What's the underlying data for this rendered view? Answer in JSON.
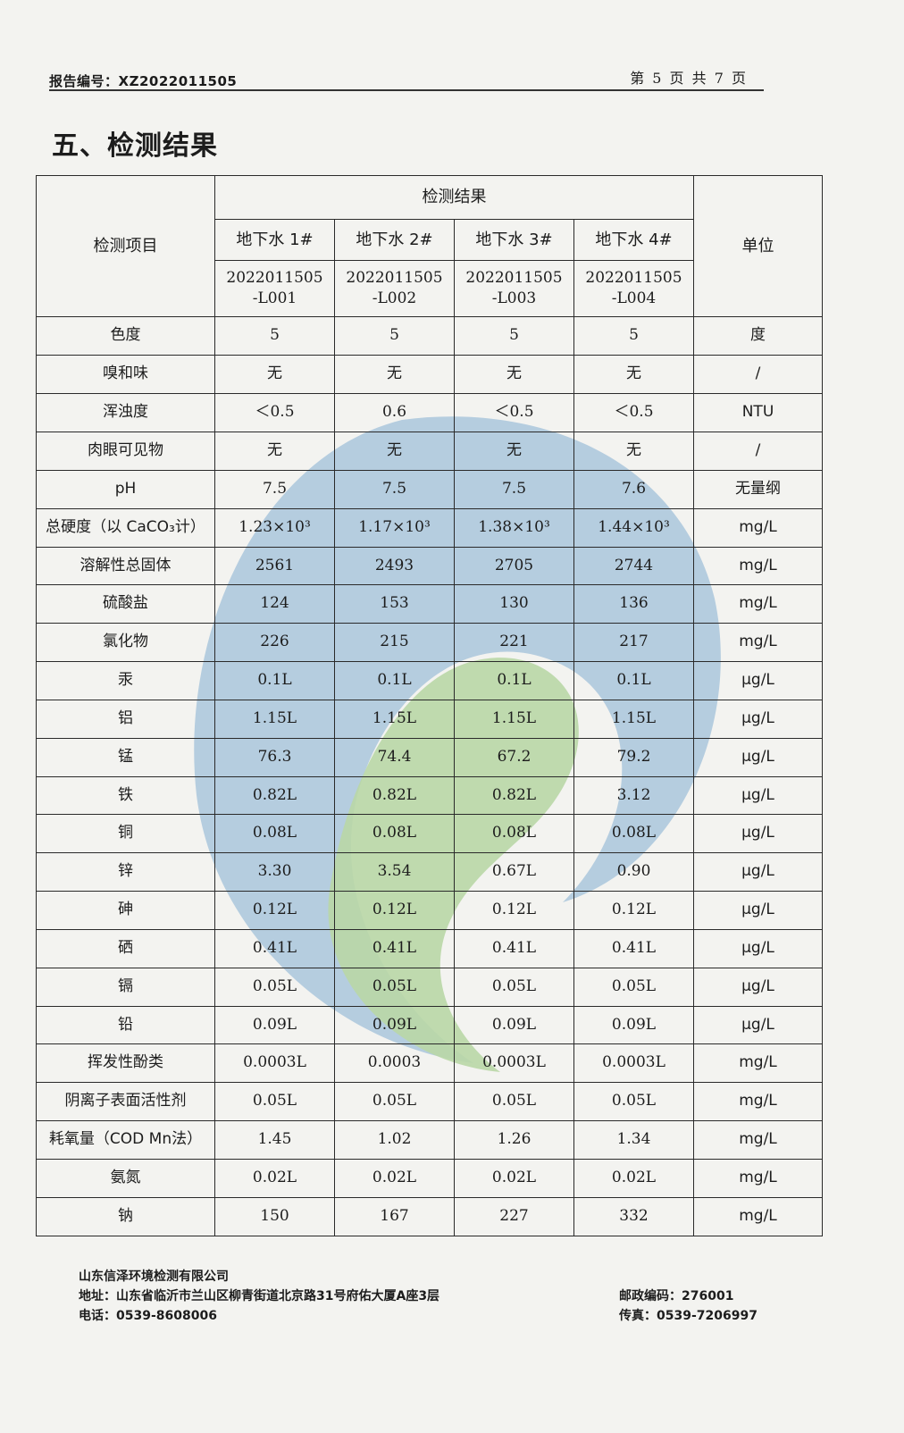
{
  "header": {
    "report_no": "报告编号：XZ2022011505",
    "page": "第 5 页 共 7 页"
  },
  "section_title": "五、检测结果",
  "table": {
    "item_header": "检测项目",
    "result_header": "检测结果",
    "unit_header": "单位",
    "samples": [
      {
        "name": "地下水 1#",
        "code": "2022011505-L001"
      },
      {
        "name": "地下水 2#",
        "code": "2022011505-L002"
      },
      {
        "name": "地下水 3#",
        "code": "2022011505-L003"
      },
      {
        "name": "地下水 4#",
        "code": "2022011505-L004"
      }
    ],
    "rows": [
      {
        "item": "色度",
        "v1": "5",
        "v2": "5",
        "v3": "5",
        "v4": "5",
        "unit": "度"
      },
      {
        "item": "嗅和味",
        "v1": "无",
        "v2": "无",
        "v3": "无",
        "v4": "无",
        "unit": "/"
      },
      {
        "item": "浑浊度",
        "v1": "＜0.5",
        "v2": "0.6",
        "v3": "＜0.5",
        "v4": "＜0.5",
        "unit": "NTU"
      },
      {
        "item": "肉眼可见物",
        "v1": "无",
        "v2": "无",
        "v3": "无",
        "v4": "无",
        "unit": "/"
      },
      {
        "item": "pH",
        "v1": "7.5",
        "v2": "7.5",
        "v3": "7.5",
        "v4": "7.6",
        "unit": "无量纲"
      },
      {
        "item": "总硬度（以 CaCO₃计）",
        "v1": "1.23×10³",
        "v2": "1.17×10³",
        "v3": "1.38×10³",
        "v4": "1.44×10³",
        "unit": "mg/L"
      },
      {
        "item": "溶解性总固体",
        "v1": "2561",
        "v2": "2493",
        "v3": "2705",
        "v4": "2744",
        "unit": "mg/L"
      },
      {
        "item": "硫酸盐",
        "v1": "124",
        "v2": "153",
        "v3": "130",
        "v4": "136",
        "unit": "mg/L"
      },
      {
        "item": "氯化物",
        "v1": "226",
        "v2": "215",
        "v3": "221",
        "v4": "217",
        "unit": "mg/L"
      },
      {
        "item": "汞",
        "v1": "0.1L",
        "v2": "0.1L",
        "v3": "0.1L",
        "v4": "0.1L",
        "unit": "μg/L"
      },
      {
        "item": "铝",
        "v1": "1.15L",
        "v2": "1.15L",
        "v3": "1.15L",
        "v4": "1.15L",
        "unit": "μg/L"
      },
      {
        "item": "锰",
        "v1": "76.3",
        "v2": "74.4",
        "v3": "67.2",
        "v4": "79.2",
        "unit": "μg/L"
      },
      {
        "item": "铁",
        "v1": "0.82L",
        "v2": "0.82L",
        "v3": "0.82L",
        "v4": "3.12",
        "unit": "μg/L"
      },
      {
        "item": "铜",
        "v1": "0.08L",
        "v2": "0.08L",
        "v3": "0.08L",
        "v4": "0.08L",
        "unit": "μg/L"
      },
      {
        "item": "锌",
        "v1": "3.30",
        "v2": "3.54",
        "v3": "0.67L",
        "v4": "0.90",
        "unit": "μg/L"
      },
      {
        "item": "砷",
        "v1": "0.12L",
        "v2": "0.12L",
        "v3": "0.12L",
        "v4": "0.12L",
        "unit": "μg/L"
      },
      {
        "item": "硒",
        "v1": "0.41L",
        "v2": "0.41L",
        "v3": "0.41L",
        "v4": "0.41L",
        "unit": "μg/L"
      },
      {
        "item": "镉",
        "v1": "0.05L",
        "v2": "0.05L",
        "v3": "0.05L",
        "v4": "0.05L",
        "unit": "μg/L"
      },
      {
        "item": "铅",
        "v1": "0.09L",
        "v2": "0.09L",
        "v3": "0.09L",
        "v4": "0.09L",
        "unit": "μg/L"
      },
      {
        "item": "挥发性酚类",
        "v1": "0.0003L",
        "v2": "0.0003",
        "v3": "0.0003L",
        "v4": "0.0003L",
        "unit": "mg/L"
      },
      {
        "item": "阴离子表面活性剂",
        "v1": "0.05L",
        "v2": "0.05L",
        "v3": "0.05L",
        "v4": "0.05L",
        "unit": "mg/L"
      },
      {
        "item": "耗氧量（COD Mn法）",
        "v1": "1.45",
        "v2": "1.02",
        "v3": "1.26",
        "v4": "1.34",
        "unit": "mg/L"
      },
      {
        "item": "氨氮",
        "v1": "0.02L",
        "v2": "0.02L",
        "v3": "0.02L",
        "v4": "0.02L",
        "unit": "mg/L"
      },
      {
        "item": "钠",
        "v1": "150",
        "v2": "167",
        "v3": "227",
        "v4": "332",
        "unit": "mg/L"
      }
    ]
  },
  "footer": {
    "company": "山东信泽环境检测有限公司",
    "address": "地址：山东省临沂市兰山区柳青街道北京路31号府佑大厦A座3层",
    "phone": "电话：0539-8608006",
    "postcode": "邮政编码：276001",
    "fax": "传真：0539-7206997"
  },
  "colors": {
    "watermark_blue": "#a9c6dc",
    "watermark_green": "#b9d7a6"
  }
}
